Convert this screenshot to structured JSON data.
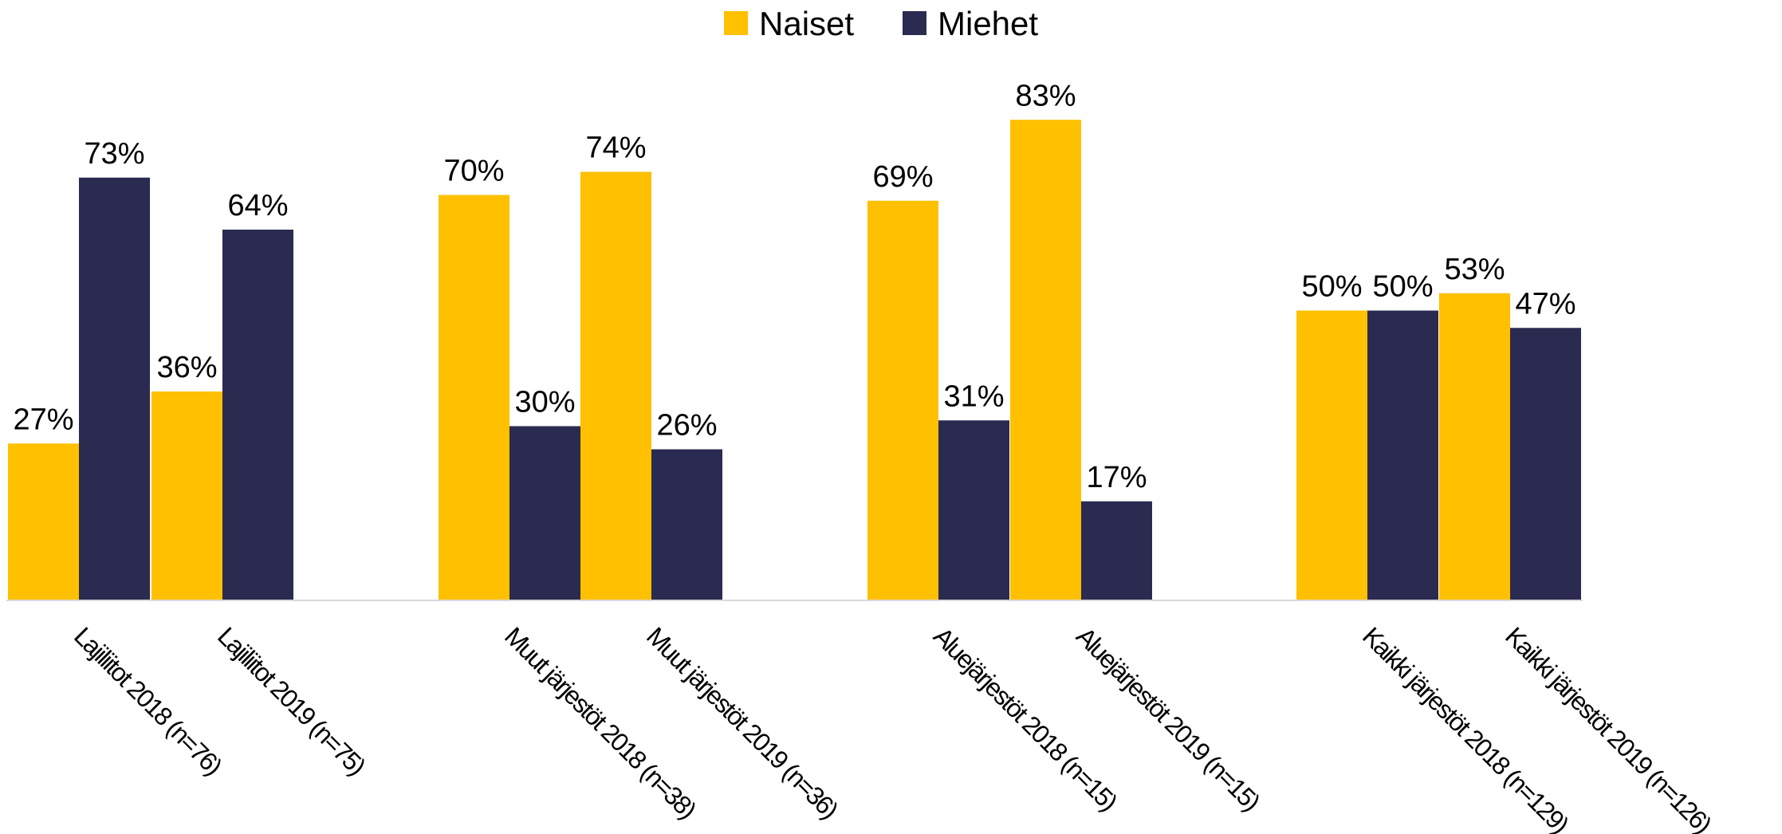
{
  "chart_data": {
    "type": "bar",
    "categories": [
      "Lajiliitot 2018 (n=76)",
      "Lajiliitot 2019 (n=75)",
      "Muut järjestöt 2018 (n=38)",
      "Muut järjestöt 2019 (n=36)",
      "Aluejärjestöt 2018 (n=15)",
      "Aluejärjestöt 2019 (n=15)",
      "Kaikki järjestöt 2018 (n=129)",
      "Kaikki järjestöt 2019 (n=126)"
    ],
    "series": [
      {
        "name": "Naiset",
        "color": "#FFC000",
        "values": [
          27,
          36,
          70,
          74,
          69,
          83,
          50,
          53
        ],
        "labels": [
          "27%",
          "36%",
          "70%",
          "74%",
          "69%",
          "83%",
          "50%",
          "53%"
        ]
      },
      {
        "name": "Miehet",
        "color": "#2B2A50",
        "values": [
          73,
          64,
          30,
          26,
          31,
          17,
          50,
          47
        ],
        "labels": [
          "73%",
          "64%",
          "30%",
          "26%",
          "31%",
          "17%",
          "50%",
          "47%"
        ]
      }
    ],
    "ylim": [
      0,
      100
    ],
    "grid": false,
    "legend": "top-center",
    "axis_color": "#D9D9D9"
  }
}
